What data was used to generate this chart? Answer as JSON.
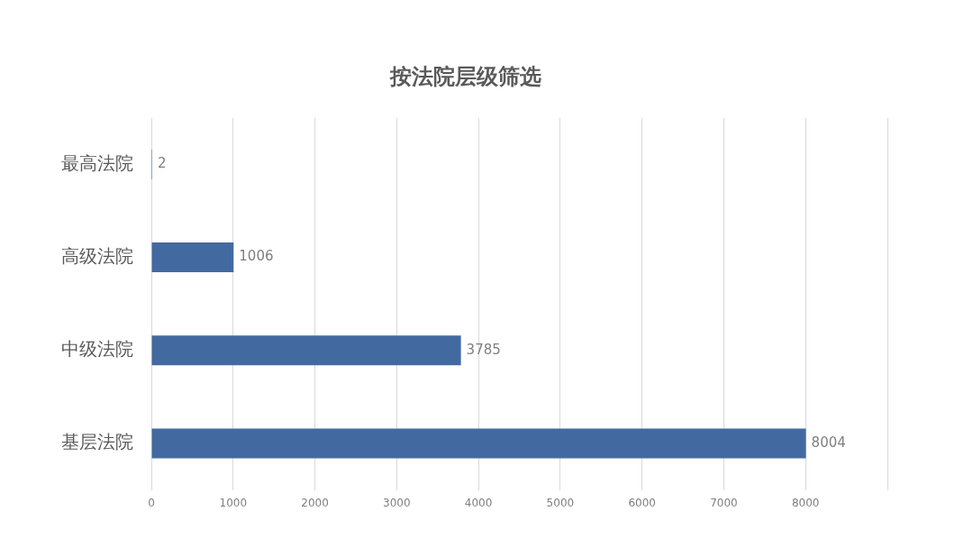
{
  "chart_data": {
    "type": "bar",
    "orientation": "horizontal",
    "title": "按法院层级筛选",
    "categories": [
      "最高法院",
      "高级法院",
      "中级法院",
      "基层法院"
    ],
    "values": [
      2,
      1006,
      3785,
      8004
    ],
    "color": "#436aa0",
    "xlim": [
      0,
      9000
    ],
    "xticks": [
      0,
      1000,
      2000,
      3000,
      4000,
      5000,
      6000,
      7000,
      8000,
      {
        "value": 9000,
        "label": null
      }
    ],
    "grid": "x",
    "data_labels": true
  }
}
